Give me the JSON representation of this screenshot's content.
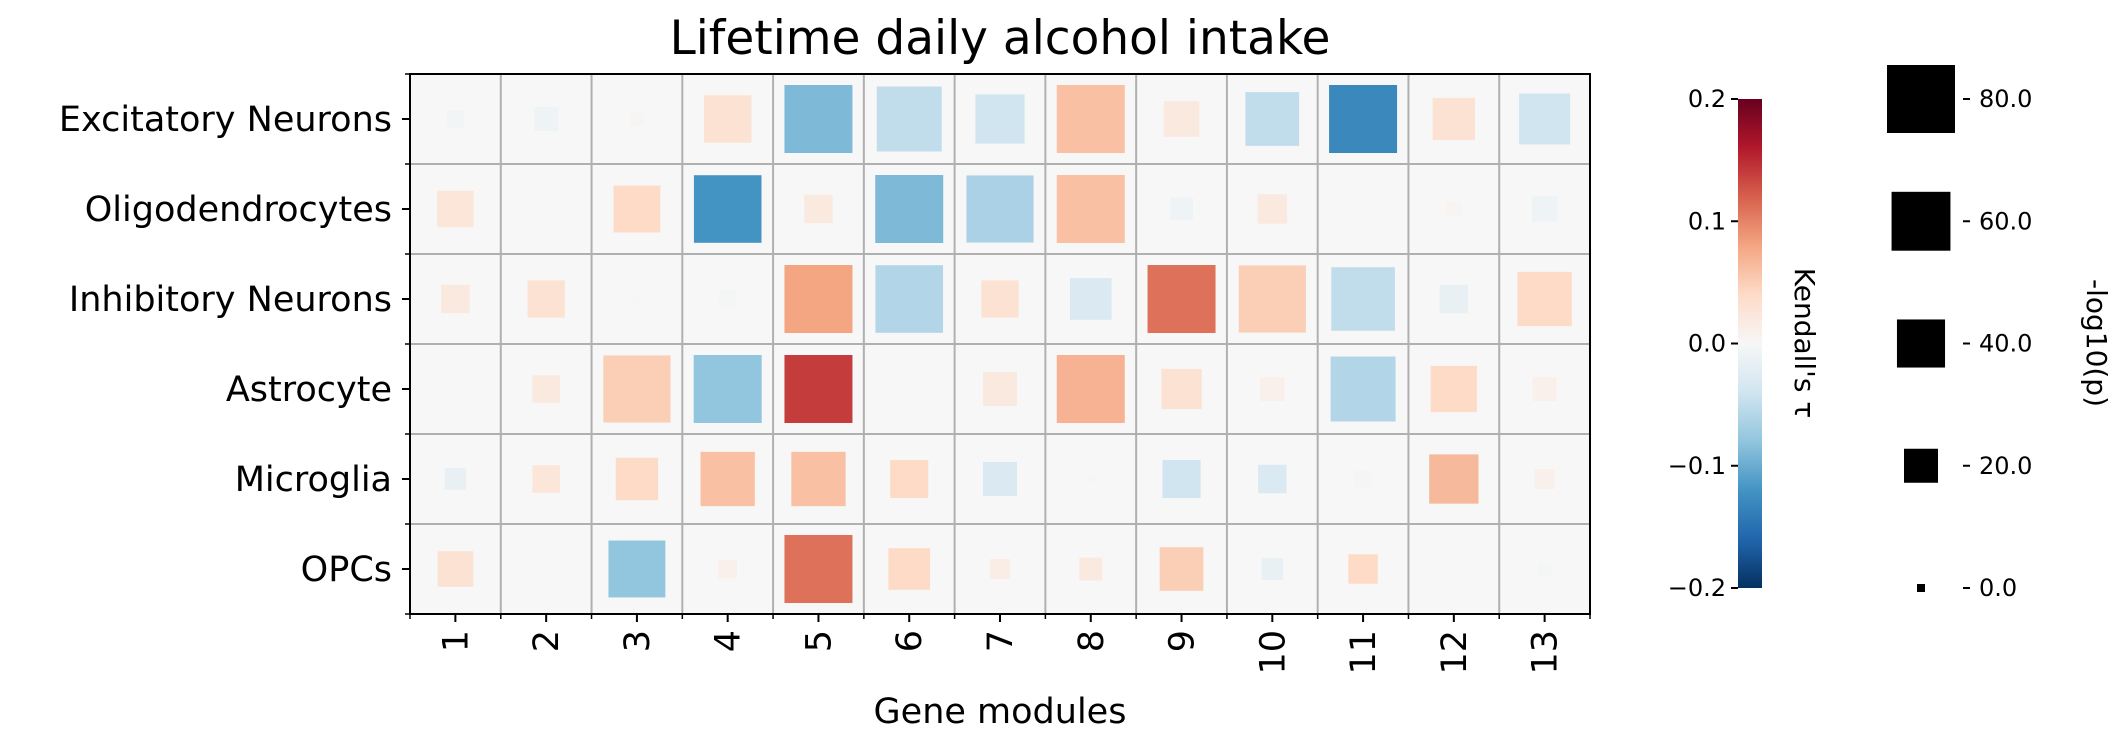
{
  "chart_data": {
    "type": "heatmap",
    "title": "Lifetime daily alcohol intake",
    "xlabel": "Gene modules",
    "ylabel": "",
    "x_categories": [
      "1",
      "2",
      "3",
      "4",
      "5",
      "6",
      "7",
      "8",
      "9",
      "10",
      "11",
      "12",
      "13"
    ],
    "y_categories": [
      "Excitatory Neurons",
      "Oligodendrocytes",
      "Inhibitory Neurons",
      "Astrocyte",
      "Microglia",
      "OPCs"
    ],
    "tau": [
      [
        -0.005,
        -0.01,
        0.003,
        0.03,
        -0.09,
        -0.05,
        -0.04,
        0.06,
        0.02,
        -0.05,
        -0.13,
        0.03,
        -0.04
      ],
      [
        0.025,
        0.0,
        0.04,
        -0.12,
        0.02,
        -0.09,
        -0.065,
        0.06,
        -0.01,
        0.02,
        0.0,
        0.005,
        -0.01
      ],
      [
        0.02,
        0.03,
        0.002,
        -0.003,
        0.08,
        -0.06,
        0.03,
        -0.03,
        0.11,
        0.05,
        -0.05,
        -0.015,
        0.04
      ],
      [
        0.0,
        0.02,
        0.05,
        -0.08,
        0.14,
        0.0,
        0.02,
        0.07,
        0.03,
        0.01,
        -0.06,
        0.04,
        0.01
      ],
      [
        -0.015,
        0.025,
        0.04,
        0.06,
        0.06,
        0.04,
        -0.03,
        0.002,
        -0.04,
        -0.03,
        -0.003,
        0.065,
        0.01
      ],
      [
        0.03,
        0.0,
        -0.08,
        0.01,
        0.11,
        0.04,
        0.015,
        0.02,
        0.05,
        -0.015,
        0.04,
        0.0,
        -0.003
      ]
    ],
    "neg_log10_p": [
      [
        5,
        10,
        3,
        39,
        80,
        73,
        42,
        80,
        22,
        50,
        80,
        31,
        45
      ],
      [
        23,
        1,
        38,
        79,
        14,
        80,
        78,
        80,
        9,
        15,
        0,
        4,
        11
      ],
      [
        14,
        24,
        1,
        5,
        80,
        79,
        24,
        30,
        80,
        78,
        70,
        14,
        51
      ],
      [
        0,
        13,
        78,
        80,
        80,
        0,
        20,
        80,
        28,
        10,
        73,
        37,
        10
      ],
      [
        8,
        13,
        31,
        51,
        51,
        25,
        20,
        1,
        25,
        14,
        5,
        42,
        7
      ],
      [
        22,
        0,
        56,
        6,
        80,
        30,
        7,
        9,
        33,
        8,
        15,
        0,
        3
      ]
    ],
    "colorbar": {
      "label": "Kendall's τ",
      "colormap": "RdBu_r",
      "range": [
        -0.2,
        0.2
      ],
      "ticks": [
        0.2,
        0.1,
        0.0,
        -0.1,
        -0.2
      ],
      "tick_labels": [
        "0.2",
        "0.1",
        "0.0",
        "−0.1",
        "−0.2"
      ]
    },
    "size_legend": {
      "label": "-log10(p)",
      "values": [
        80,
        60,
        40,
        20,
        0
      ],
      "tick_labels": [
        "80.0",
        "60.0",
        "40.0",
        "20.0",
        "0.0"
      ]
    },
    "grid": true
  }
}
